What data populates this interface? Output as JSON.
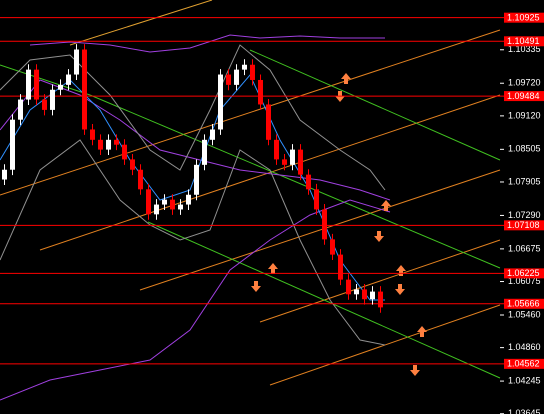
{
  "chart_data": {
    "type": "candlestick",
    "open": [
      1.0795,
      1.0813,
      1.0905,
      1.0942,
      1.0997,
      1.0942,
      1.0923,
      1.096,
      1.0969,
      1.0988,
      1.1034,
      1.0887,
      1.0868,
      1.085,
      1.0868,
      1.0859,
      1.0832,
      1.0813,
      1.0777,
      1.0731,
      1.0749,
      1.0758,
      1.074,
      1.0749,
      1.0767,
      1.0822,
      1.0868,
      1.0887,
      1.0988,
      1.0969,
      1.0997,
      1.1006,
      1.0978,
      1.0933,
      1.0868,
      1.0832,
      1.0822,
      1.085,
      1.0804,
      1.0777,
      1.074,
      1.0685,
      1.0657,
      1.0611,
      1.0584,
      1.0593,
      1.0575,
      1.0589
    ],
    "high": [
      1.0823,
      1.0915,
      1.0952,
      1.1007,
      1.1007,
      1.0952,
      1.097,
      1.0979,
      1.0998,
      1.1044,
      1.1044,
      1.0897,
      1.0878,
      1.0878,
      1.0878,
      1.0869,
      1.0842,
      1.0823,
      1.0787,
      1.0759,
      1.0768,
      1.0768,
      1.0759,
      1.0777,
      1.0832,
      1.0878,
      1.0897,
      1.0998,
      1.0998,
      1.1007,
      1.1016,
      1.1016,
      1.0988,
      1.0943,
      1.0878,
      1.0842,
      1.086,
      1.086,
      1.0814,
      1.0787,
      1.075,
      1.0695,
      1.0667,
      1.0621,
      1.0603,
      1.0603,
      1.0599,
      1.0599
    ],
    "low": [
      1.0785,
      1.0803,
      1.0895,
      1.0932,
      1.0932,
      1.0913,
      1.0913,
      1.095,
      1.0959,
      1.0978,
      1.0877,
      1.0858,
      1.084,
      1.084,
      1.0849,
      1.0822,
      1.0803,
      1.0767,
      1.0721,
      1.0721,
      1.0739,
      1.073,
      1.073,
      1.0739,
      1.0757,
      1.0812,
      1.0858,
      1.0877,
      1.0959,
      1.0959,
      1.0987,
      1.0968,
      1.0923,
      1.0858,
      1.0822,
      1.0812,
      1.0812,
      1.0794,
      1.0767,
      1.073,
      1.0675,
      1.0647,
      1.0601,
      1.0574,
      1.0574,
      1.0565,
      1.0565,
      1.055
    ],
    "close": [
      1.0813,
      1.0905,
      1.0942,
      1.0997,
      1.0942,
      1.0923,
      1.096,
      1.0969,
      1.0988,
      1.1034,
      1.0887,
      1.0868,
      1.085,
      1.0868,
      1.0859,
      1.0832,
      1.0813,
      1.0777,
      1.0731,
      1.0749,
      1.0758,
      1.074,
      1.0749,
      1.0767,
      1.0822,
      1.0868,
      1.0887,
      1.0988,
      1.0969,
      1.0997,
      1.1006,
      1.0978,
      1.0933,
      1.0868,
      1.0832,
      1.0822,
      1.085,
      1.0804,
      1.0777,
      1.074,
      1.0685,
      1.0657,
      1.0611,
      1.0584,
      1.0593,
      1.0575,
      1.0589,
      1.056
    ],
    "up_color": "#ffffff",
    "down_color": "#ff0000",
    "ylim": [
      1.0364,
      1.1125
    ],
    "yticks": [
      1.10335,
      {
        "value": 1.0972,
        "label": "1.09720"
      },
      {
        "value": 1.0912,
        "label": "1.09120"
      },
      1.08505,
      1.07905,
      {
        "value": 1.0729,
        "label": "1.07290"
      },
      1.06675,
      1.06075,
      {
        "value": 1.0546,
        "label": "1.05460"
      },
      {
        "value": 1.0486,
        "label": "1.04860"
      },
      1.04245,
      1.03645
    ],
    "levels": [
      1.10925,
      1.10491,
      1.09484,
      1.07108,
      1.06225,
      1.05666,
      1.04562
    ],
    "level_color": "#ff0000"
  }
}
